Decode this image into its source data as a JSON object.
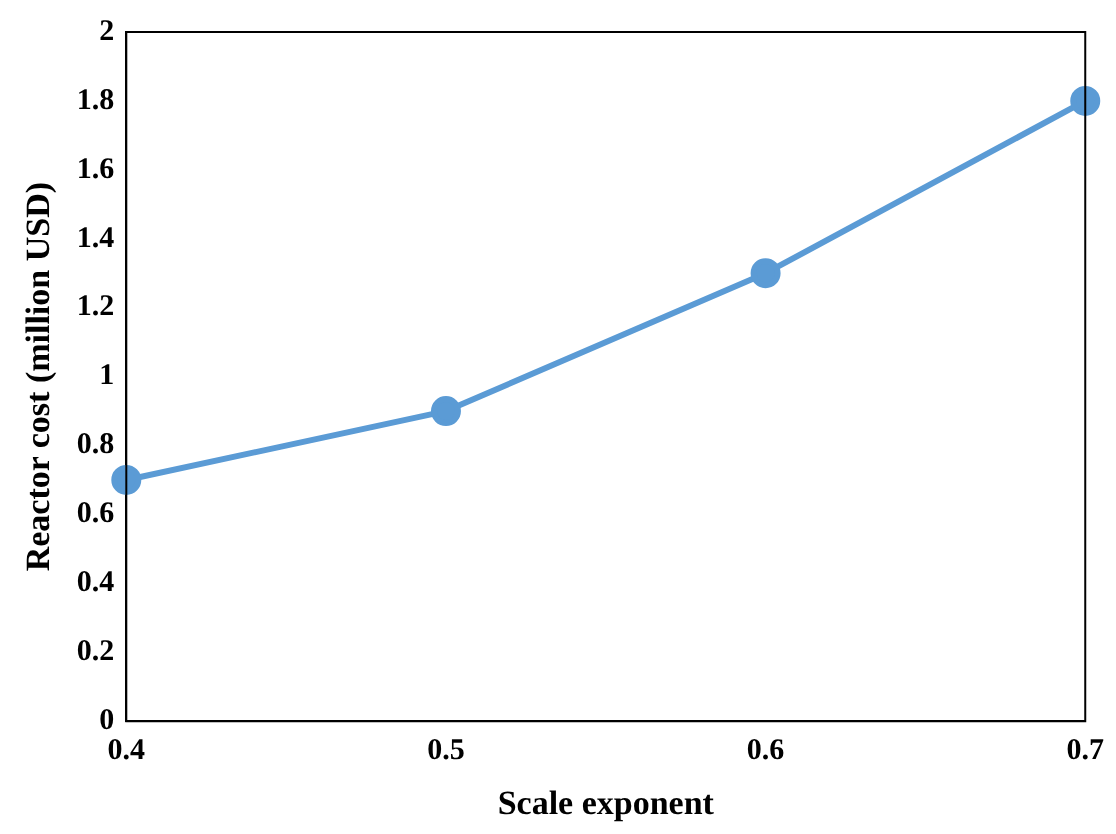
{
  "chart_data": {
    "type": "line",
    "xlabel": "Scale exponent",
    "ylabel": "Reactor cost (million USD)",
    "x": [
      0.4,
      0.5,
      0.6,
      0.7
    ],
    "series": [
      {
        "color": "#5b9bd5",
        "values": [
          0.7,
          0.9,
          1.3,
          1.8
        ]
      }
    ],
    "xlim": [
      0.4,
      0.7
    ],
    "xticks": [
      0.4,
      0.5,
      0.6,
      0.7
    ],
    "ylim": [
      0,
      2
    ],
    "yticks": [
      0,
      0.2,
      0.4,
      0.6,
      0.8,
      1,
      1.2,
      1.4,
      1.6,
      1.8,
      2
    ],
    "grid": false,
    "legend": false,
    "marker": "circle",
    "line_style": "solid"
  }
}
